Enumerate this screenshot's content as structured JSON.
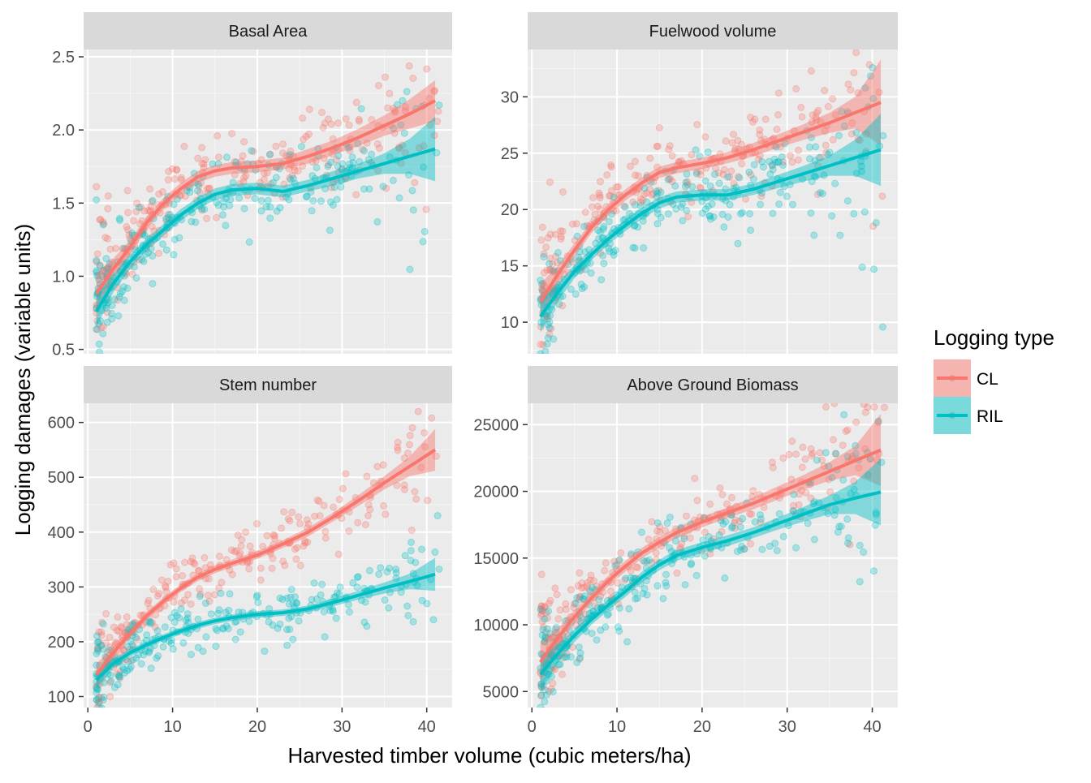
{
  "figure": {
    "ylabel": "Logging damages (variable units)",
    "xlabel": "Harvested timber volume (cubic meters/ha)",
    "legend": {
      "title": "Logging type",
      "items": [
        {
          "label": "CL",
          "color": "#F8766D"
        },
        {
          "label": "RIL",
          "color": "#00BFC4"
        }
      ]
    }
  },
  "chart_data": [
    {
      "type": "scatter",
      "title": "Basal Area",
      "xlim": [
        -0.5,
        43
      ],
      "ylim": [
        0.47,
        2.55
      ],
      "xticks": [
        0,
        10,
        20,
        30,
        40
      ],
      "yticks": [
        0.5,
        1.0,
        1.5,
        2.0,
        2.5
      ],
      "ytick_labels": [
        "0.5",
        "1.0",
        "1.5",
        "2.0",
        "2.5"
      ],
      "grid": true,
      "smooth": "loess with confidence band",
      "series": [
        {
          "name": "CL",
          "color": "#F8766D",
          "x": [
            1,
            3,
            5,
            7,
            9,
            11,
            13,
            15,
            17,
            20,
            23,
            26,
            29,
            32,
            35,
            38,
            41
          ],
          "y": [
            0.88,
            1.05,
            1.2,
            1.37,
            1.5,
            1.6,
            1.68,
            1.72,
            1.74,
            1.75,
            1.77,
            1.82,
            1.88,
            1.95,
            2.03,
            2.11,
            2.2
          ],
          "band": [
            0.14,
            0.07,
            0.05,
            0.04,
            0.04,
            0.04,
            0.04,
            0.04,
            0.04,
            0.04,
            0.04,
            0.05,
            0.05,
            0.06,
            0.07,
            0.1,
            0.14
          ]
        },
        {
          "name": "RIL",
          "color": "#00BFC4",
          "x": [
            1,
            3,
            5,
            7,
            9,
            11,
            13,
            15,
            17,
            20,
            23,
            26,
            29,
            32,
            35,
            38,
            41
          ],
          "y": [
            0.76,
            0.95,
            1.1,
            1.22,
            1.32,
            1.42,
            1.5,
            1.56,
            1.59,
            1.6,
            1.58,
            1.62,
            1.67,
            1.72,
            1.77,
            1.82,
            1.87
          ],
          "band": [
            0.11,
            0.06,
            0.05,
            0.04,
            0.04,
            0.04,
            0.04,
            0.04,
            0.04,
            0.04,
            0.04,
            0.04,
            0.05,
            0.05,
            0.07,
            0.12,
            0.22
          ]
        }
      ]
    },
    {
      "type": "scatter",
      "title": "Fuelwood volume",
      "xlim": [
        -0.5,
        43
      ],
      "ylim": [
        7.2,
        34.2
      ],
      "xticks": [
        0,
        10,
        20,
        30,
        40
      ],
      "yticks": [
        10,
        15,
        20,
        25,
        30
      ],
      "ytick_labels": [
        "10",
        "15",
        "20",
        "25",
        "30"
      ],
      "grid": true,
      "smooth": "loess with confidence band",
      "series": [
        {
          "name": "CL",
          "color": "#F8766D",
          "x": [
            1,
            3,
            5,
            7,
            9,
            11,
            13,
            15,
            17,
            20,
            23,
            26,
            29,
            32,
            35,
            38,
            41
          ],
          "y": [
            11.8,
            14.2,
            16.4,
            18.4,
            20.0,
            21.3,
            22.4,
            23.3,
            23.7,
            24.1,
            24.6,
            25.3,
            26.1,
            26.9,
            27.7,
            28.6,
            29.5
          ],
          "band": [
            1.6,
            0.8,
            0.6,
            0.5,
            0.5,
            0.5,
            0.5,
            0.5,
            0.5,
            0.5,
            0.5,
            0.6,
            0.6,
            0.7,
            0.9,
            1.4,
            3.8
          ]
        },
        {
          "name": "RIL",
          "color": "#00BFC4",
          "x": [
            1,
            3,
            5,
            7,
            9,
            11,
            13,
            15,
            17,
            20,
            23,
            26,
            29,
            32,
            35,
            38,
            41
          ],
          "y": [
            10.5,
            12.6,
            14.5,
            16.0,
            17.4,
            18.6,
            19.7,
            20.6,
            21.1,
            21.3,
            21.3,
            21.8,
            22.5,
            23.2,
            23.9,
            24.6,
            25.3
          ],
          "band": [
            1.4,
            0.8,
            0.6,
            0.5,
            0.5,
            0.5,
            0.5,
            0.5,
            0.5,
            0.5,
            0.5,
            0.5,
            0.6,
            0.7,
            0.9,
            1.6,
            3.2
          ]
        }
      ]
    },
    {
      "type": "scatter",
      "title": "Stem number",
      "xlim": [
        -0.5,
        43
      ],
      "ylim": [
        80,
        635
      ],
      "xticks": [
        0,
        10,
        20,
        30,
        40
      ],
      "yticks": [
        100,
        200,
        300,
        400,
        500,
        600
      ],
      "ytick_labels": [
        "100",
        "200",
        "300",
        "400",
        "500",
        "600"
      ],
      "grid": true,
      "smooth": "loess with confidence band",
      "series": [
        {
          "name": "CL",
          "color": "#F8766D",
          "x": [
            1,
            3,
            5,
            7,
            9,
            11,
            13,
            15,
            17,
            20,
            23,
            26,
            29,
            32,
            35,
            38,
            41
          ],
          "y": [
            140,
            180,
            215,
            248,
            275,
            298,
            318,
            332,
            343,
            358,
            378,
            400,
            428,
            458,
            490,
            520,
            550
          ],
          "band": [
            20,
            10,
            8,
            7,
            7,
            7,
            7,
            7,
            7,
            7,
            7,
            8,
            8,
            10,
            12,
            18,
            38
          ]
        },
        {
          "name": "RIL",
          "color": "#00BFC4",
          "x": [
            1,
            3,
            5,
            7,
            9,
            11,
            13,
            15,
            17,
            20,
            23,
            26,
            29,
            32,
            35,
            38,
            41
          ],
          "y": [
            130,
            160,
            180,
            195,
            208,
            220,
            230,
            238,
            244,
            250,
            253,
            260,
            272,
            285,
            298,
            310,
            323
          ],
          "band": [
            16,
            9,
            7,
            6,
            6,
            6,
            6,
            6,
            6,
            6,
            6,
            6,
            7,
            8,
            10,
            14,
            30
          ]
        }
      ]
    },
    {
      "type": "scatter",
      "title": "Above Ground Biomass",
      "xlim": [
        -0.5,
        43
      ],
      "ylim": [
        3800,
        26600
      ],
      "xticks": [
        0,
        10,
        20,
        30,
        40
      ],
      "yticks": [
        5000,
        10000,
        15000,
        20000,
        25000
      ],
      "ytick_labels": [
        "5000",
        "10000",
        "15000",
        "20000",
        "25000"
      ],
      "grid": true,
      "smooth": "loess with confidence band",
      "series": [
        {
          "name": "CL",
          "color": "#F8766D",
          "x": [
            1,
            3,
            5,
            7,
            9,
            11,
            13,
            15,
            17,
            20,
            23,
            26,
            29,
            32,
            35,
            38,
            41
          ],
          "y": [
            7200,
            9000,
            10600,
            12000,
            13300,
            14400,
            15400,
            16200,
            16900,
            17700,
            18400,
            19100,
            19900,
            20700,
            21500,
            22300,
            23100
          ],
          "band": [
            1500,
            700,
            500,
            400,
            400,
            400,
            400,
            400,
            400,
            400,
            400,
            450,
            500,
            550,
            700,
            1100,
            2700
          ]
        },
        {
          "name": "RIL",
          "color": "#00BFC4",
          "x": [
            1,
            3,
            5,
            7,
            9,
            11,
            13,
            15,
            17,
            20,
            23,
            26,
            29,
            32,
            35,
            38,
            41
          ],
          "y": [
            6300,
            7800,
            9200,
            10400,
            11500,
            12500,
            13600,
            14500,
            15200,
            15800,
            16300,
            16900,
            17600,
            18300,
            19000,
            19500,
            19950
          ],
          "band": [
            1400,
            700,
            500,
            400,
            400,
            400,
            400,
            400,
            400,
            400,
            400,
            400,
            450,
            550,
            700,
            1200,
            2500
          ]
        }
      ]
    }
  ]
}
